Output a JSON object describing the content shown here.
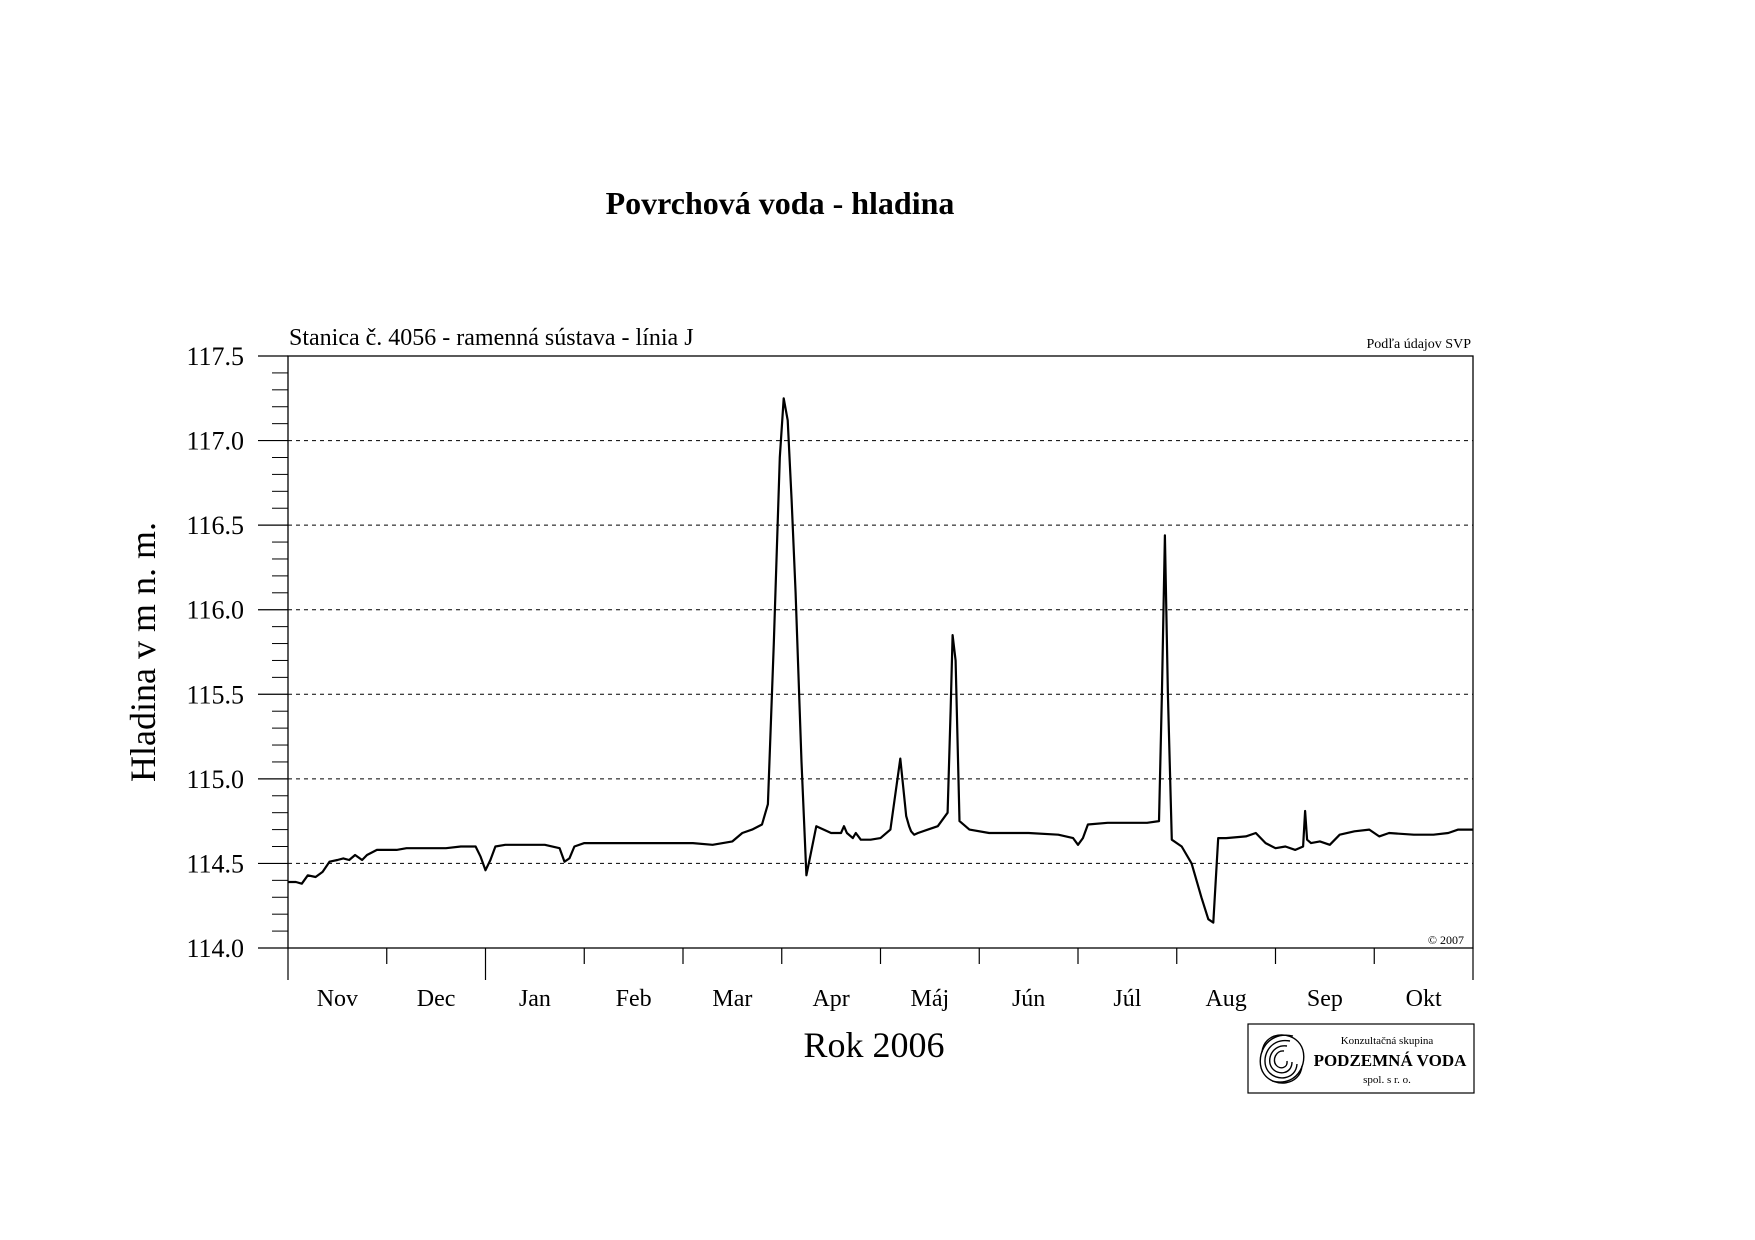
{
  "chart_data": {
    "type": "line",
    "title": "Povrchová voda - hladina",
    "subtitle": "Stanica č. 4056 - ramenná sústava - línia J",
    "source_note": "Podľa údajov SVP",
    "copyright": "© 2007",
    "xlabel": "Rok 2006",
    "ylabel": "Hladina v m n. m.",
    "ylim": [
      114.0,
      117.5
    ],
    "yticks": [
      "114.0",
      "114.5",
      "115.0",
      "115.5",
      "116.0",
      "116.5",
      "117.0",
      "117.5"
    ],
    "y_minor_step": 0.1,
    "grid": "horizontal dashed at major ticks",
    "x_unit": "months from 2005-11-01",
    "xlim": [
      0,
      12
    ],
    "month_labels": [
      "Nov",
      "Dec",
      "Jan",
      "Feb",
      "Mar",
      "Apr",
      "Máj",
      "Jún",
      "Júl",
      "Aug",
      "Sep",
      "Okt"
    ],
    "series": [
      {
        "x": [
          0,
          0.08,
          0.14,
          0.2,
          0.28,
          0.35,
          0.42,
          0.5,
          0.56,
          0.62,
          0.68,
          0.75,
          0.8,
          0.9,
          1.0,
          1.1,
          1.2,
          1.3,
          1.45,
          1.6,
          1.75,
          1.9,
          1.95,
          2.0,
          2.05,
          2.1,
          2.2,
          2.4,
          2.6,
          2.75,
          2.8,
          2.85,
          2.9,
          3.0,
          3.2,
          3.5,
          3.8,
          4.1,
          4.3,
          4.5,
          4.6,
          4.7,
          4.8,
          4.86,
          4.92,
          4.98,
          5.02,
          5.06,
          5.1,
          5.14,
          5.2,
          5.25,
          5.35,
          5.5,
          5.6,
          5.63,
          5.66,
          5.72,
          5.75,
          5.8,
          5.9,
          6.0,
          6.1,
          6.2,
          6.26,
          6.29,
          6.31,
          6.34,
          6.38,
          6.48,
          6.58,
          6.68,
          6.71,
          6.73,
          6.76,
          6.8,
          6.9,
          7.1,
          7.5,
          7.8,
          7.95,
          8.0,
          8.05,
          8.1,
          8.3,
          8.5,
          8.7,
          8.82,
          8.85,
          8.88,
          8.91,
          8.95,
          9.05,
          9.15,
          9.25,
          9.32,
          9.37,
          9.42,
          9.5,
          9.7,
          9.8,
          9.9,
          10.0,
          10.1,
          10.2,
          10.28,
          10.3,
          10.32,
          10.36,
          10.45,
          10.55,
          10.65,
          10.8,
          10.95,
          11.05,
          11.15,
          11.4,
          11.6,
          11.75,
          11.85,
          12.0
        ],
        "y": [
          114.39,
          114.39,
          114.38,
          114.43,
          114.42,
          114.45,
          114.51,
          114.52,
          114.53,
          114.52,
          114.55,
          114.52,
          114.55,
          114.58,
          114.58,
          114.58,
          114.59,
          114.59,
          114.59,
          114.59,
          114.6,
          114.6,
          114.54,
          114.46,
          114.52,
          114.6,
          114.61,
          114.61,
          114.61,
          114.59,
          114.51,
          114.53,
          114.6,
          114.62,
          114.62,
          114.62,
          114.62,
          114.62,
          114.61,
          114.63,
          114.68,
          114.7,
          114.73,
          114.85,
          115.8,
          116.9,
          117.25,
          117.12,
          116.65,
          116.1,
          115.1,
          114.43,
          114.72,
          114.68,
          114.68,
          114.72,
          114.68,
          114.65,
          114.68,
          114.64,
          114.64,
          114.65,
          114.7,
          115.12,
          114.78,
          114.72,
          114.69,
          114.67,
          114.68,
          114.7,
          114.72,
          114.8,
          115.4,
          115.85,
          115.7,
          114.75,
          114.7,
          114.68,
          114.68,
          114.67,
          114.65,
          114.61,
          114.65,
          114.73,
          114.74,
          114.74,
          114.74,
          114.75,
          115.5,
          116.44,
          115.5,
          114.64,
          114.6,
          114.5,
          114.3,
          114.17,
          114.15,
          114.65,
          114.65,
          114.66,
          114.68,
          114.62,
          114.59,
          114.6,
          114.58,
          114.6,
          114.81,
          114.64,
          114.62,
          114.63,
          114.61,
          114.67,
          114.69,
          114.7,
          114.66,
          114.68,
          114.67,
          114.67,
          114.68,
          114.7,
          114.7
        ]
      }
    ]
  },
  "logo": {
    "line1": "Konzultačná skupina",
    "line2": "PODZEMNÁ VODA",
    "line3": "spol. s r. o."
  }
}
